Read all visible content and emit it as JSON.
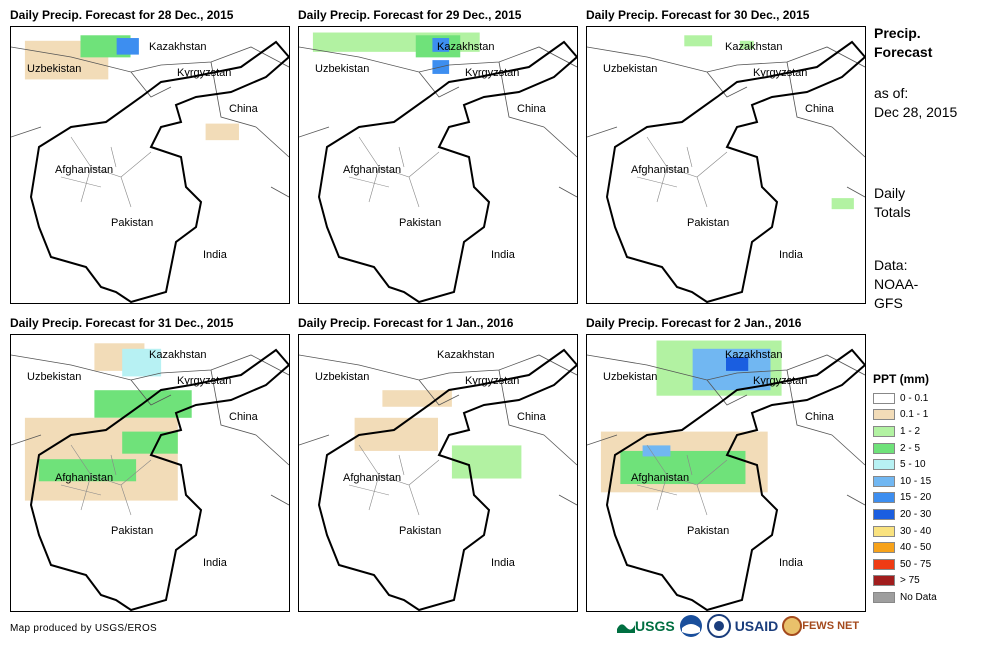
{
  "panels": [
    {
      "title": "Daily Precip. Forecast for 28 Dec., 2015",
      "day": 0
    },
    {
      "title": "Daily Precip. Forecast for 29 Dec., 2015",
      "day": 1
    },
    {
      "title": "Daily Precip. Forecast for 30 Dec., 2015",
      "day": 2
    },
    {
      "title": "Daily Precip. Forecast for 31 Dec., 2015",
      "day": 3
    },
    {
      "title": "Daily Precip. Forecast for 1 Jan., 2016",
      "day": 4
    },
    {
      "title": "Daily Precip. Forecast for 2 Jan., 2016",
      "day": 5
    }
  ],
  "map_labels": {
    "kazakhstan": "Kazakhstan",
    "uzbekistan": "Uzbekistan",
    "kyrgyzstan": "Kyrgyzstan",
    "china": "China",
    "afghanistan": "Afghanistan",
    "pakistan": "Pakistan",
    "india": "India"
  },
  "side": {
    "title_line1": "Precip.",
    "title_line2": "Forecast",
    "asof_label": "as of:",
    "asof_date": "Dec 28, 2015",
    "daily1": "Daily",
    "daily2": "Totals",
    "data1": "Data:",
    "data2": "NOAA-",
    "data3": "GFS"
  },
  "legend": {
    "title": "PPT (mm)",
    "items": [
      {
        "label": "0 - 0.1",
        "color": "#ffffff"
      },
      {
        "label": "0.1 - 1",
        "color": "#f2dcb8"
      },
      {
        "label": "1 - 2",
        "color": "#b2f2a2"
      },
      {
        "label": "2 - 5",
        "color": "#6fe27a"
      },
      {
        "label": "5 - 10",
        "color": "#b7f1f3"
      },
      {
        "label": "10 - 15",
        "color": "#71b7f2"
      },
      {
        "label": "15 - 20",
        "color": "#3d8ef0"
      },
      {
        "label": "20 - 30",
        "color": "#1a5ee0"
      },
      {
        "label": "30 - 40",
        "color": "#f9e27f"
      },
      {
        "label": "40 - 50",
        "color": "#f7a21a"
      },
      {
        "label": "50 - 75",
        "color": "#ef3b13"
      },
      {
        "label": "> 75",
        "color": "#a11d1d"
      },
      {
        "label": "No Data",
        "color": "#9e9e9e"
      }
    ]
  },
  "credit": "Map produced by USGS/EROS",
  "logos": {
    "usgs": "USGS",
    "usaid": "USAID",
    "fewsnet": "FEWS NET"
  },
  "precip_patches": [
    [
      [
        5,
        0.05,
        0.05,
        0.3,
        0.14,
        "#f2dcb8"
      ],
      [
        0.25,
        0.03,
        0.18,
        0.08,
        "#6fe27a"
      ],
      [
        0.38,
        0.04,
        0.08,
        0.06,
        "#3d8ef0"
      ],
      [
        0.7,
        0.35,
        0.12,
        0.06,
        "#f2dcb8"
      ]
    ],
    [
      [
        0.05,
        0.02,
        0.6,
        0.07,
        "#b2f2a2"
      ],
      [
        0.42,
        0.03,
        0.16,
        0.08,
        "#6fe27a"
      ],
      [
        0.48,
        0.04,
        0.06,
        0.05,
        "#3d8ef0"
      ],
      [
        0.48,
        0.12,
        0.06,
        0.05,
        "#3d8ef0"
      ]
    ],
    [
      [
        0.35,
        0.03,
        0.1,
        0.04,
        "#b2f2a2"
      ],
      [
        0.55,
        0.05,
        0.05,
        0.03,
        "#b2f2a2"
      ],
      [
        0.88,
        0.62,
        0.08,
        0.04,
        "#b2f2a2"
      ]
    ],
    [
      [
        0.3,
        0.03,
        0.18,
        0.1,
        "#f2dcb8"
      ],
      [
        0.4,
        0.05,
        0.14,
        0.1,
        "#b7f1f3"
      ],
      [
        0.3,
        0.2,
        0.35,
        0.1,
        "#6fe27a"
      ],
      [
        0.05,
        0.3,
        0.55,
        0.3,
        "#f2dcb8"
      ],
      [
        0.1,
        0.45,
        0.35,
        0.08,
        "#6fe27a"
      ],
      [
        0.4,
        0.35,
        0.2,
        0.08,
        "#6fe27a"
      ]
    ],
    [
      [
        0.3,
        0.2,
        0.25,
        0.06,
        "#f2dcb8"
      ],
      [
        0.55,
        0.4,
        0.25,
        0.12,
        "#b2f2a2"
      ],
      [
        0.2,
        0.3,
        0.3,
        0.12,
        "#f2dcb8"
      ]
    ],
    [
      [
        0.25,
        0.02,
        0.45,
        0.2,
        "#b2f2a2"
      ],
      [
        0.38,
        0.05,
        0.28,
        0.15,
        "#71b7f2"
      ],
      [
        0.5,
        0.08,
        0.08,
        0.05,
        "#1a5ee0"
      ],
      [
        0.05,
        0.35,
        0.6,
        0.22,
        "#f2dcb8"
      ],
      [
        0.12,
        0.42,
        0.45,
        0.12,
        "#6fe27a"
      ],
      [
        0.2,
        0.4,
        0.1,
        0.04,
        "#71b7f2"
      ]
    ]
  ]
}
